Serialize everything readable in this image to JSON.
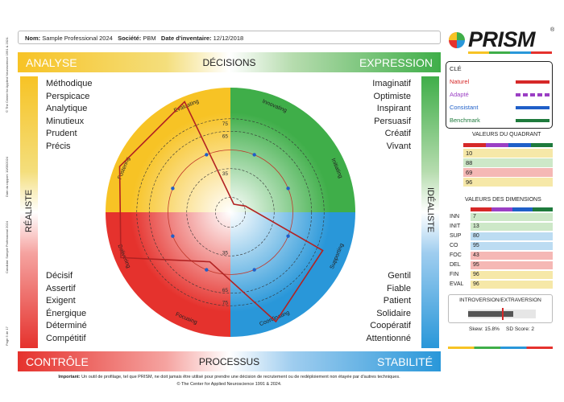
{
  "side_notes": {
    "copyright": "© The Center for Applied Neuroscience 1991 & 2024.",
    "report_date": "Date du rapport: 10/05/2024",
    "candidate": "Candidat: Sample Professional 2024",
    "page": "Page 5 de 17"
  },
  "header": {
    "name_label": "Nom:",
    "name_value": "Sample Professional 2024",
    "company_label": "Société:",
    "company_value": "PBM",
    "date_label": "Date d'inventaire:",
    "date_value": "12/12/2018"
  },
  "logo": {
    "text": "PRISM",
    "registered": "®"
  },
  "top_bar": {
    "left": "ANALYSE",
    "center": "DÉCISIONS",
    "right": "EXPRESSION"
  },
  "bottom_bar": {
    "left": "CONTRÔLE",
    "center": "PROCESSUS",
    "right": "STABILITÉ"
  },
  "left_side_label": "RÉALISTE",
  "right_side_label": "IDÉALISTE",
  "words": {
    "top_left": [
      "Méthodique",
      "Perspicace",
      "Analytique",
      "Minutieux",
      "Prudent",
      "Précis"
    ],
    "top_right": [
      "Imaginatif",
      "Optimiste",
      "Inspirant",
      "Persuasif",
      "Créatif",
      "Vivant"
    ],
    "bottom_left": [
      "Décisif",
      "Assertif",
      "Exigent",
      "Énergique",
      "Déterminé",
      "Compétitif"
    ],
    "bottom_right": [
      "Gentil",
      "Fiable",
      "Patient",
      "Solidaire",
      "Coopératif",
      "Attentionné"
    ]
  },
  "wheel": {
    "axes": [
      "Innovating",
      "Initiating",
      "Supporting",
      "Coordinating",
      "Focusing",
      "Delivering",
      "Fostering",
      "Evaluating"
    ],
    "ring_labels": [
      "75",
      "65",
      "35",
      "35",
      "65",
      "75"
    ],
    "naturel": [
      7,
      13,
      80,
      95,
      43,
      95,
      96,
      96
    ],
    "adapte": [
      50,
      50,
      50,
      50,
      50,
      50,
      50,
      50
    ],
    "colors": {
      "yellow": "#f7c325",
      "green": "#3fae49",
      "red": "#e5322d",
      "blue": "#2997d9"
    }
  },
  "legend": {
    "title": "CLÉ",
    "items": [
      {
        "label": "Naturel",
        "color": "#d62828",
        "style": "solid"
      },
      {
        "label": "Adapté",
        "color": "#9b3fc4",
        "style": "dashed"
      },
      {
        "label": "Consistant",
        "color": "#1f5fc8",
        "style": "solid"
      },
      {
        "label": "Benchmark",
        "color": "#1e7a3c",
        "style": "solid"
      }
    ]
  },
  "quadrant_values": {
    "title": "VALEURS DU QUADRANT",
    "rows": [
      {
        "value": "10",
        "color": "#f6e8a8"
      },
      {
        "value": "88",
        "color": "#cde8c8"
      },
      {
        "value": "69",
        "color": "#f5b8b5"
      },
      {
        "value": "96",
        "color": "#f6e8a8"
      }
    ]
  },
  "dimension_values": {
    "title": "VALEURS DES DIMENSIONS",
    "rows": [
      {
        "code": "INN",
        "value": "7",
        "color": "#cde8c8"
      },
      {
        "code": "INIT",
        "value": "13",
        "color": "#cde8c8"
      },
      {
        "code": "SUP",
        "value": "80",
        "color": "#bcdcf2"
      },
      {
        "code": "CO",
        "value": "95",
        "color": "#bcdcf2"
      },
      {
        "code": "FOC",
        "value": "43",
        "color": "#f5b8b5"
      },
      {
        "code": "DEL",
        "value": "95",
        "color": "#f5b8b5"
      },
      {
        "code": "FIN",
        "value": "96",
        "color": "#f6e8a8"
      },
      {
        "code": "EVAL",
        "value": "96",
        "color": "#f6e8a8"
      }
    ]
  },
  "introversion": {
    "title": "INTROVERSION/EXTRAVERSION",
    "skew_text": "Skew: 15.8%",
    "sd_text": "SD Score: 2"
  },
  "footer": {
    "important_label": "Important:",
    "important_text": " Un outil de profilage, tel que PRISM, ne doit jamais être utilisé pour prendre une décision de recrutement ou de redéploiement non étayée par d'autres techniques.",
    "copyright": "© The Center for Applied Neuroscience 1991 & 2024."
  }
}
